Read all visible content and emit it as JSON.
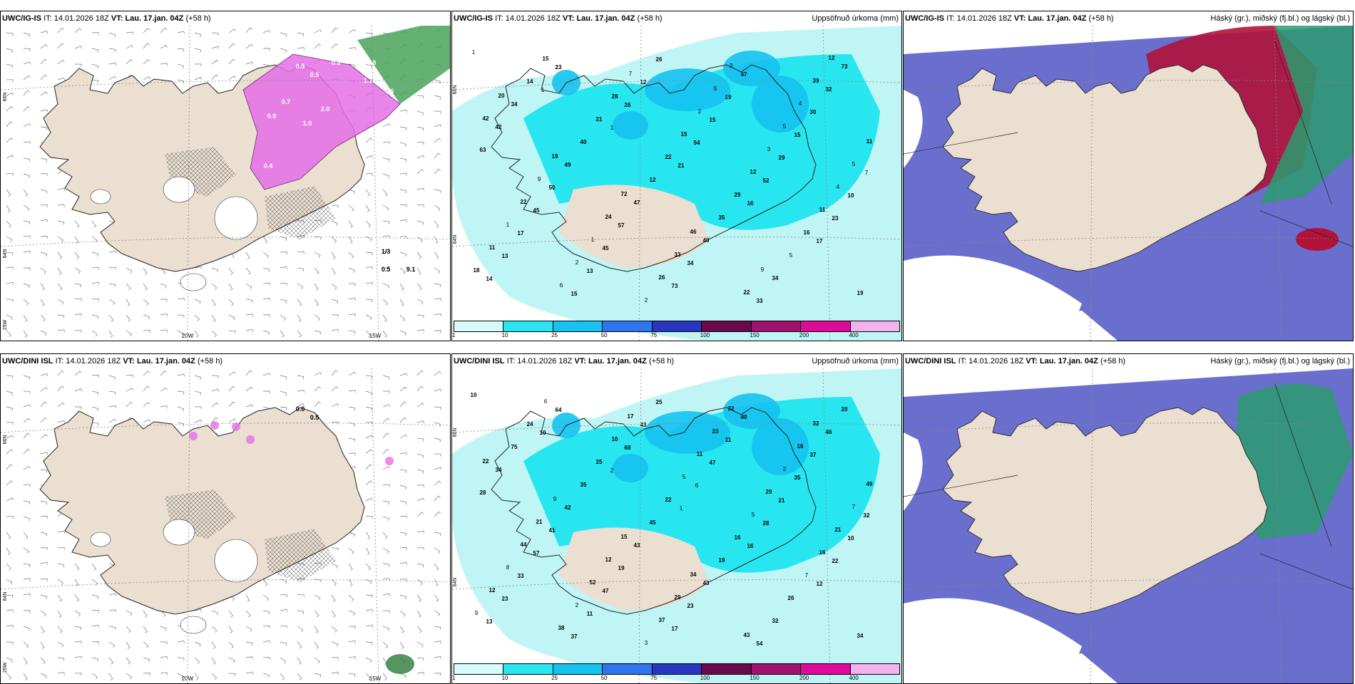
{
  "colors": {
    "land": "#eadfd0",
    "precip_light": "#bff5f5",
    "precip_mid": "#27e6f0",
    "precip_blue": "#15c2f0",
    "cloud_high": "#b0123a",
    "cloud_mid": "#2a9b6e",
    "cloud_low": "#5a5fc8",
    "snow_pink": "#e56ee8"
  },
  "colorbar": {
    "ticks": [
      "1",
      "10",
      "25",
      "50",
      "75",
      "100",
      "150",
      "200",
      "400"
    ],
    "colors": [
      "#d7fbfb",
      "#27e6f0",
      "#15c2f0",
      "#2f74f0",
      "#2a36c0",
      "#6a0a4a",
      "#a0126e",
      "#e00a9a",
      "#f5b0ee"
    ]
  },
  "panels": [
    {
      "model": "UWC/IG-IS",
      "it_label": "IT:",
      "it_value": "14.01.2026 18Z",
      "vt_label": "VT:",
      "vt_value": "Lau. 17.jan. 04Z",
      "lead": "(+58 h)",
      "title": "",
      "type": "wind",
      "lon_labels": [
        "20W",
        "15W"
      ],
      "lat_labels": [
        "66N",
        "64N",
        "25W"
      ],
      "values": [
        "0.5",
        "0.5",
        "0.5",
        "0.8",
        "1.1",
        "0.6",
        "0.7",
        "0.9",
        "1.0",
        "2.0",
        "0.4",
        "1/3",
        "0.5",
        "9.1"
      ]
    },
    {
      "model": "UWC/IG-IS",
      "it_label": "IT:",
      "it_value": "14.01.2026 18Z",
      "vt_label": "VT:",
      "vt_value": "Lau. 17.jan. 04Z",
      "lead": "(+58 h)",
      "title": "Uppsöfnuð úrkoma (mm)",
      "type": "precip",
      "lat_labels": [
        "66N",
        "64N"
      ],
      "values": [
        "1",
        "1",
        "1",
        "21",
        "16",
        "17",
        "14",
        "23",
        "26",
        "54",
        "52",
        "23",
        "13",
        "15",
        "12",
        "15",
        "29",
        "10",
        "17",
        "13",
        "26",
        "19",
        "15",
        "7",
        "45",
        "45",
        "73",
        "47",
        "30",
        "63",
        "50",
        "57",
        "34",
        "33",
        "32",
        "42",
        "49",
        "47",
        "40",
        "34",
        "73",
        "34",
        "40",
        "12",
        "35",
        "5",
        "19",
        "14",
        "21",
        "22",
        "29",
        "16",
        "18",
        "15",
        "28",
        "15",
        "12",
        "11",
        "11",
        "6",
        "7",
        "2",
        "3",
        "4",
        "1",
        "2",
        "2",
        "6",
        "5",
        "5",
        "22",
        "1",
        "26",
        "3",
        "4",
        "11",
        "9",
        "24",
        "33",
        "22",
        "39",
        "42",
        "19",
        "72",
        "46",
        "9",
        "12",
        "20"
      ]
    },
    {
      "model": "UWC/IG-IS",
      "it_label": "IT:",
      "it_value": "14.01.2026 18Z",
      "vt_label": "VT:",
      "vt_value": "Lau. 17.jan. 04Z",
      "lead": "(+58 h)",
      "title": "Háský (gr.), miðský (fj.bl.) og lágský (bl.)",
      "type": "cloud"
    },
    {
      "model": "UWC/DINI ISL",
      "it_label": "IT:",
      "it_value": "14.01.2026 18Z",
      "vt_label": "VT:",
      "vt_value": "Lau. 17.jan. 04Z",
      "lead": "(+58 h)",
      "title": "",
      "type": "wind",
      "lon_labels": [
        "20W",
        "15W"
      ],
      "lat_labels": [
        "66N",
        "64N",
        "25W"
      ],
      "values": [
        "0.0",
        "0.5"
      ]
    },
    {
      "model": "UWC/DINI ISL",
      "it_label": "IT:",
      "it_value": "14.01.2026 18Z",
      "vt_label": "VT:",
      "vt_value": "Lau. 17.jan. 04Z",
      "lead": "(+58 h)",
      "title": "Uppsöfnuð úrkoma (mm)",
      "type": "precip",
      "lat_labels": [
        "66N",
        "64N"
      ],
      "values": [
        "10",
        "10",
        "2",
        "1",
        "16",
        "12",
        "13",
        "64",
        "68",
        "6",
        "28",
        "22",
        "23",
        "37",
        "43",
        "47",
        "21",
        "10",
        "33",
        "11",
        "25",
        "11",
        "35",
        "32",
        "57",
        "47",
        "17",
        "40",
        "37",
        "28",
        "41",
        "19",
        "23",
        "54",
        "46",
        "34",
        "42",
        "43",
        "43",
        "32",
        "20",
        "75",
        "35",
        "45",
        "19",
        "26",
        "34",
        "24",
        "25",
        "22",
        "16",
        "7",
        "9",
        "6",
        "10",
        "5",
        "5",
        "16",
        "12",
        "38",
        "17",
        "11",
        "29",
        "21",
        "8",
        "2",
        "3",
        "23",
        "2",
        "7",
        "44",
        "52",
        "37",
        "32",
        "16",
        "49",
        "21",
        "12",
        "29",
        "43",
        "32",
        "22",
        "9",
        "15",
        "34"
      ]
    },
    {
      "model": "UWC/DINI ISL",
      "it_label": "IT:",
      "it_value": "14.01.2026 18Z",
      "vt_label": "VT:",
      "vt_value": "Lau. 17.jan. 04Z",
      "lead": "(+58 h)",
      "title": "Háský (gr.), miðský (fj.bl.) og lágský (bl.)",
      "type": "cloud"
    }
  ]
}
